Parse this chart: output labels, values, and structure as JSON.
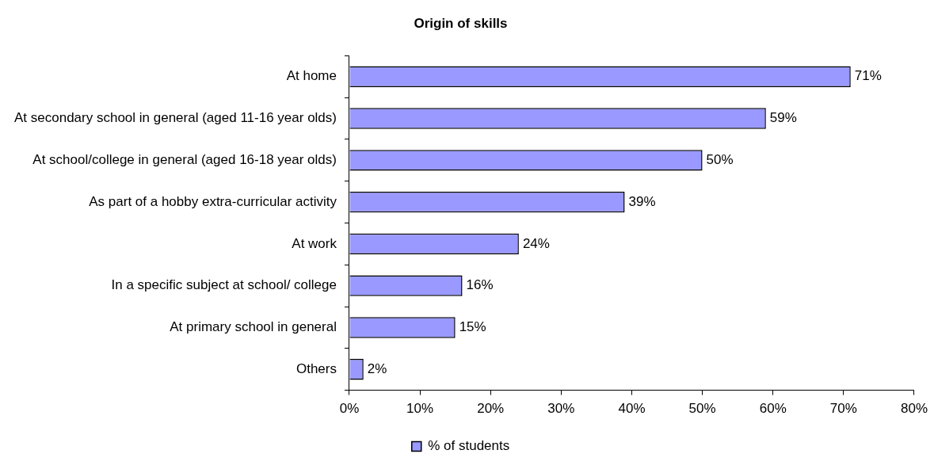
{
  "chart_data": {
    "type": "bar",
    "orientation": "horizontal",
    "title": "Origin of skills",
    "categories": [
      "At home",
      "At secondary school in general (aged 11-16 year olds)",
      "At school/college in general (aged 16-18 year olds)",
      "As part of a hobby extra-curricular activity",
      "At work",
      "In a specific subject at school/ college",
      "At primary school in general",
      "Others"
    ],
    "series": [
      {
        "name": "% of students",
        "color": "#9999ff",
        "values": [
          71,
          59,
          50,
          39,
          24,
          16,
          15,
          2
        ],
        "value_labels": [
          "71%",
          "59%",
          "50%",
          "39%",
          "24%",
          "16%",
          "15%",
          "2%"
        ]
      }
    ],
    "xlim": [
      0,
      80
    ],
    "xticks": [
      {
        "value": 0,
        "label": "0%"
      },
      {
        "value": 10,
        "label": "10%"
      },
      {
        "value": 20,
        "label": "20%"
      },
      {
        "value": 30,
        "label": "30%"
      },
      {
        "value": 40,
        "label": "40%"
      },
      {
        "value": 50,
        "label": "50%"
      },
      {
        "value": 60,
        "label": "60%"
      },
      {
        "value": 70,
        "label": "70%"
      },
      {
        "value": 80,
        "label": "80%"
      }
    ],
    "grid": false,
    "legend": "bottom"
  }
}
